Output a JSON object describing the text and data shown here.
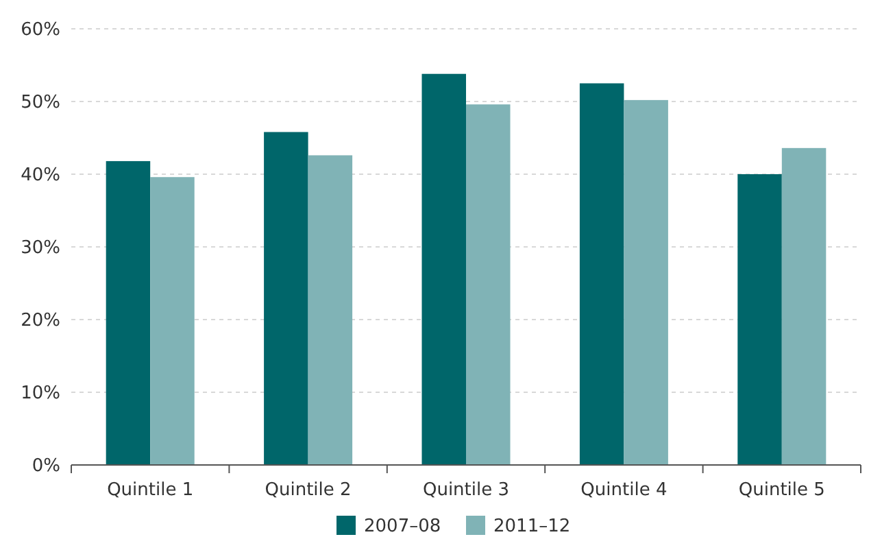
{
  "chart_data": {
    "type": "bar",
    "categories": [
      "Quintile 1",
      "Quintile 2",
      "Quintile 3",
      "Quintile 4",
      "Quintile 5"
    ],
    "series": [
      {
        "name": "2007–08",
        "color": "#00666a",
        "values": [
          41.8,
          45.8,
          53.8,
          52.5,
          40.0
        ]
      },
      {
        "name": "2011–12",
        "color": "#80b3b6",
        "values": [
          39.6,
          42.6,
          49.6,
          50.2,
          43.6
        ]
      }
    ],
    "ylim": [
      0,
      60
    ],
    "yticks": [
      {
        "value": 0,
        "label": "0%"
      },
      {
        "value": 10,
        "label": "10%"
      },
      {
        "value": 20,
        "label": "20%"
      },
      {
        "value": 30,
        "label": "30%"
      },
      {
        "value": 40,
        "label": "40%"
      },
      {
        "value": 50,
        "label": "50%"
      },
      {
        "value": 60,
        "label": "60%"
      }
    ],
    "grid": "y",
    "legend": "bottom"
  }
}
